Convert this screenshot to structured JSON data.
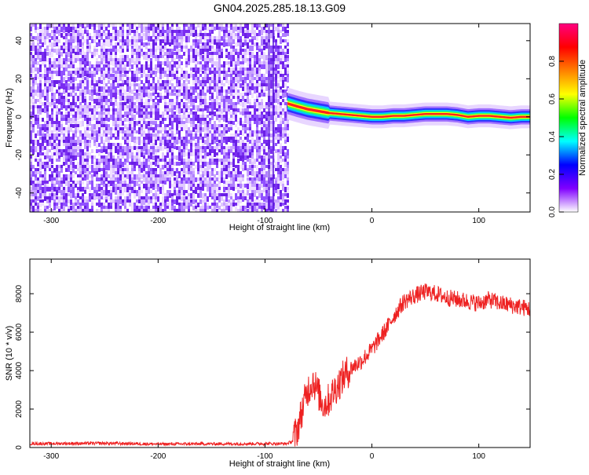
{
  "title": "GN04.2025.285.18.13.G09",
  "chart_data": [
    {
      "type": "heatmap",
      "xlabel": "Height of straight line (km)",
      "ylabel": "Frequency (Hz)",
      "xlim": [
        -320,
        148
      ],
      "ylim": [
        -50,
        49
      ],
      "xticks": [
        -300,
        -200,
        -100,
        0,
        100
      ],
      "yticks": [
        -40,
        -20,
        0,
        20,
        40
      ],
      "grid": false,
      "noise_region_x": [
        -320,
        -79
      ],
      "trace": {
        "x": [
          -79,
          -70,
          -60,
          -50,
          -40,
          -30,
          -20,
          -10,
          0,
          10,
          20,
          30,
          40,
          50,
          60,
          70,
          80,
          90,
          100,
          110,
          120,
          130,
          140,
          148
        ],
        "frequency_hz": [
          7,
          5.5,
          4,
          3,
          2,
          1.5,
          1,
          0.5,
          0,
          0,
          0.5,
          0.5,
          1,
          1.5,
          1.5,
          1.5,
          1,
          0,
          0.5,
          0.5,
          0,
          -0.5,
          0,
          0
        ]
      },
      "colorbar": {
        "label": "Normalized spectral amplitude",
        "ticks": [
          "0.0",
          "0.2",
          "0.4",
          "0.6",
          "0.8"
        ],
        "range": [
          0,
          1
        ],
        "colors": [
          "#ffffff",
          "#8000ff",
          "#0000ff",
          "#00ffff",
          "#00ff00",
          "#ffff00",
          "#ff8000",
          "#ff0000",
          "#ff0080"
        ]
      }
    },
    {
      "type": "line",
      "xlabel": "Height of straight line (km)",
      "ylabel": "SNR (10 * v/v)",
      "xlim": [
        -320,
        148
      ],
      "ylim": [
        0,
        9800
      ],
      "xticks": [
        -300,
        -200,
        -100,
        0,
        100
      ],
      "yticks": [
        0,
        2000,
        4000,
        6000,
        8000
      ],
      "grid": false,
      "series": [
        {
          "color": "#ee2222",
          "x": [
            -320,
            -250,
            -200,
            -150,
            -100,
            -80,
            -75,
            -70,
            -65,
            -60,
            -55,
            -50,
            -45,
            -40,
            -35,
            -30,
            -25,
            -20,
            -15,
            -10,
            -5,
            0,
            5,
            10,
            15,
            20,
            25,
            30,
            40,
            50,
            60,
            70,
            80,
            90,
            100,
            110,
            120,
            130,
            140,
            148
          ],
          "values": [
            200,
            220,
            180,
            190,
            200,
            200,
            300,
            900,
            2000,
            3000,
            3500,
            2800,
            2200,
            2500,
            3000,
            3400,
            3800,
            4100,
            4300,
            4500,
            4800,
            5100,
            5500,
            5900,
            6300,
            6800,
            7200,
            7600,
            7900,
            8100,
            8000,
            7800,
            7700,
            7600,
            7500,
            7700,
            7500,
            7400,
            7300,
            7200
          ]
        }
      ]
    }
  ]
}
